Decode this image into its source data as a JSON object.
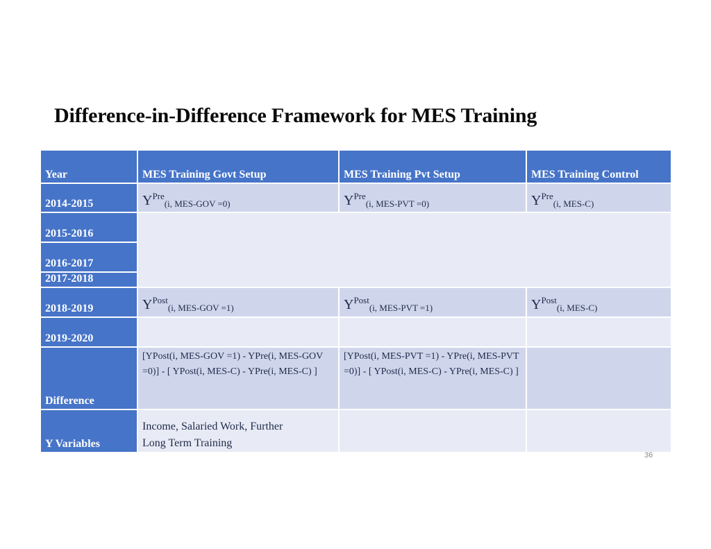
{
  "slide": {
    "title": "Difference-in-Difference Framework for MES Training",
    "page_number": "36"
  },
  "table": {
    "headers": [
      "Year",
      "MES Training Govt Setup",
      "MES Training Pvt Setup",
      "MES Training Control"
    ],
    "years": [
      "2014-2015",
      "2015-2016",
      "2016-2017",
      "2017-2018",
      "2018-2019",
      "2019-2020"
    ],
    "row_pre": {
      "y": "Y",
      "sup": "Pre",
      "govt_sub": "(i, MES-GOV =0)",
      "pvt_sub": "(i, MES-PVT =0)",
      "control_sub": "(i, MES-C)"
    },
    "row_post": {
      "y": "Y",
      "sup": "Post",
      "govt_sub": "(i, MES-GOV =1)",
      "pvt_sub": "(i, MES-PVT =1)",
      "control_sub": "(i, MES-C)"
    },
    "difference": {
      "label": "Difference",
      "govt": "[YPost(i, MES-GOV =1) - YPre(i, MES-GOV =0)] - [ YPost(i, MES-C) - YPre(i, MES-C) ]",
      "pvt": "[YPost(i, MES-PVT =1) - YPre(i, MES-PVT =0)] - [ YPost(i, MES-C) - YPre(i, MES-C) ]"
    },
    "y_variables": {
      "label": "Y Variables",
      "line1": "Income, Salaried Work, Further",
      "line2": "Long Term Training"
    }
  }
}
